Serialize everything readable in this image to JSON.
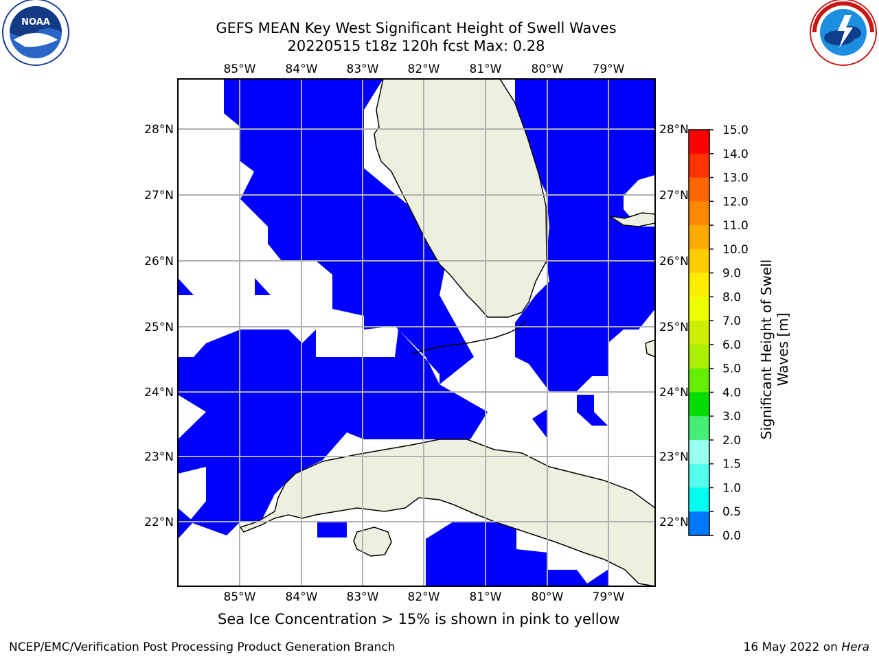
{
  "title": {
    "line1": "GEFS MEAN Key West Significant Height of Swell Waves",
    "line2": "20220515 t18z 120h fcst   Max: 0.28"
  },
  "map": {
    "lon_ticks": [
      "85°W",
      "84°W",
      "83°W",
      "82°W",
      "81°W",
      "80°W",
      "79°W"
    ],
    "lat_ticks": [
      "28°N",
      "27°N",
      "26°N",
      "25°N",
      "24°N",
      "23°N",
      "22°N"
    ],
    "colors": {
      "swell_fill": "#0000ff",
      "land": "#efefdf",
      "grid": "#b0b0b0",
      "coast": "#000000"
    }
  },
  "colorbar": {
    "title_line1": "Significant Height of Swell",
    "title_line2": "Waves [m]",
    "labels": [
      "15.0",
      "14.0",
      "13.0",
      "12.0",
      "11.0",
      "10.0",
      "9.0",
      "8.0",
      "7.0",
      "6.0",
      "5.0",
      "4.0",
      "3.0",
      "2.0",
      "1.5",
      "1.0",
      "0.5",
      "0.0"
    ],
    "colors": [
      "#ff0000",
      "#ff3300",
      "#ff6600",
      "#ff8800",
      "#ffaa00",
      "#ffcc00",
      "#ffee00",
      "#eeff00",
      "#ccee00",
      "#aaee00",
      "#66ee00",
      "#00dd00",
      "#44ee77",
      "#99ffee",
      "#55ffee",
      "#00ffee",
      "#0077ff",
      "#0000ff"
    ]
  },
  "note": "Sea Ice Concentration > 15% is shown in pink to yellow",
  "footer": {
    "left": "NCEP/EMC/Verification Post Processing Product Generation Branch",
    "right_date": "16 May 2022 on ",
    "right_host": "Hera"
  },
  "logos": {
    "left": "NOAA",
    "right": "NATIONAL WEATHER SERVICE"
  }
}
